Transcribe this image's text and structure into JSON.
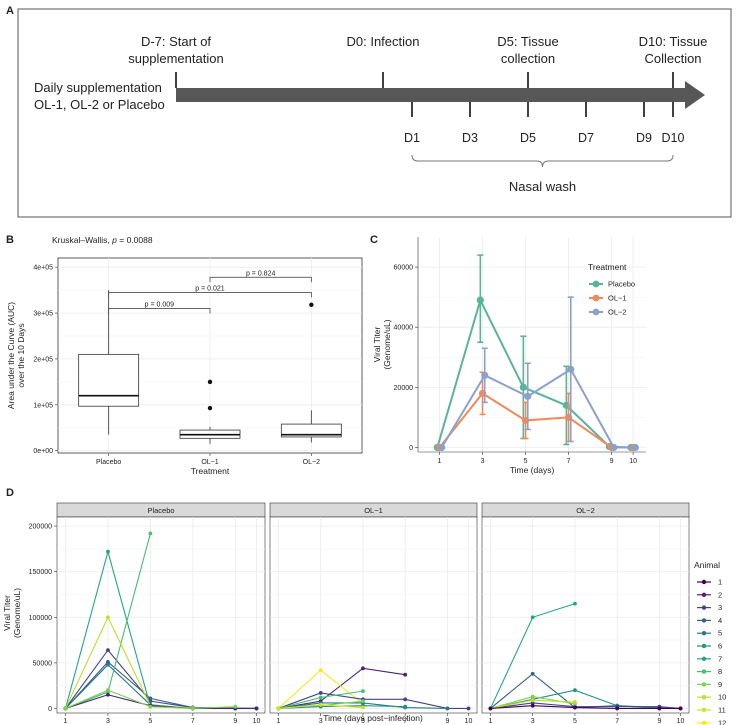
{
  "panel_letters": {
    "A": "A",
    "B": "B",
    "C": "C",
    "D": "D"
  },
  "timeline": {
    "left_label_lines": [
      "Daily supplementation",
      "OL-1, OL-2 or Placebo"
    ],
    "events": [
      {
        "day": -7,
        "lines": [
          "D-7: Start of",
          "supplementation"
        ]
      },
      {
        "day": 0,
        "lines": [
          "D0: Infection"
        ]
      },
      {
        "day": 5,
        "lines": [
          "D5: Tissue",
          "collection"
        ]
      },
      {
        "day": 10,
        "lines": [
          "D10: Tissue",
          "Collection"
        ]
      }
    ],
    "washes": [
      {
        "day": 1,
        "label": "D1"
      },
      {
        "day": 3,
        "label": "D3"
      },
      {
        "day": 5,
        "label": "D5"
      },
      {
        "day": 7,
        "label": "D7"
      },
      {
        "day": 9,
        "label": "D9"
      },
      {
        "day": 10,
        "label": "D10"
      }
    ],
    "bracket_label": "Nasal wash"
  },
  "colors": {
    "placebo": "#5ab497",
    "ol1": "#f08a5d",
    "ol2": "#8da0cb",
    "frame": "#555555"
  },
  "chart_data": [
    {
      "id": "B",
      "type": "box",
      "title": "Kruskal–Wallis, p = 0.0088",
      "title_prefix": "Kruskal–Wallis, ",
      "title_p": "p",
      "title_value": " = 0.0088",
      "xlabel": "Treatment",
      "ylabel_lines": [
        "Area under the Curve (AUC)",
        "over the 10 Days"
      ],
      "categories": [
        "Placebo",
        "OL−1",
        "OL−2"
      ],
      "ylim": [
        -5000,
        420000
      ],
      "yticks": [
        0,
        100000,
        200000,
        300000,
        400000
      ],
      "ytick_labels": [
        "0e+00",
        "1e+05",
        "2e+05",
        "3e+05",
        "4e+05"
      ],
      "boxes": [
        {
          "group": "Placebo",
          "whisker_low": 35000,
          "q1": 97000,
          "median": 120000,
          "q3": 210000,
          "whisker_high": 350000,
          "outliers": []
        },
        {
          "group": "OL−1",
          "whisker_low": 15000,
          "q1": 27000,
          "median": 35000,
          "q3": 45000,
          "whisker_high": 52000,
          "outliers": [
            93000,
            150000
          ]
        },
        {
          "group": "OL−2",
          "whisker_low": 18000,
          "q1": 30000,
          "median": 35000,
          "q3": 58000,
          "whisker_high": 88000,
          "outliers": [
            318000
          ]
        }
      ],
      "comparisons": [
        {
          "from": "OL−1",
          "to": "OL−2",
          "y": 378000,
          "label": "p = 0.824"
        },
        {
          "from": "Placebo",
          "to": "OL−2",
          "y": 345000,
          "label": "p = 0.021"
        },
        {
          "from": "Placebo",
          "to": "OL−1",
          "y": 310000,
          "label": "p = 0.009"
        }
      ]
    },
    {
      "id": "C",
      "type": "line",
      "xlabel": "Time (days)",
      "ylabel_lines": [
        "Viral Titer",
        "(Genome/uL)"
      ],
      "xticks": [
        1,
        3,
        5,
        7,
        9,
        10
      ],
      "xlim": [
        0,
        10.6
      ],
      "ylim": [
        -1500,
        70000
      ],
      "yticks": [
        0,
        20000,
        40000,
        60000
      ],
      "ytick_labels": [
        "0",
        "20000",
        "40000",
        "60000"
      ],
      "legend_title": "Treatment",
      "legend_position": "right",
      "series": [
        {
          "name": "Placebo",
          "color": "#5ab497",
          "x": [
            1,
            3,
            5,
            7,
            9,
            10
          ],
          "y": [
            0,
            49000,
            20000,
            14000,
            300,
            0
          ],
          "lo": [
            0,
            35000,
            3000,
            1000,
            0,
            0
          ],
          "hi": [
            0,
            64000,
            37000,
            27000,
            800,
            0
          ]
        },
        {
          "name": "OL−1",
          "color": "#f08a5d",
          "x": [
            1,
            3,
            5,
            7,
            9,
            10
          ],
          "y": [
            0,
            18000,
            9000,
            10000,
            0,
            0
          ],
          "lo": [
            0,
            11000,
            3000,
            2000,
            0,
            0
          ],
          "hi": [
            0,
            25000,
            15000,
            18000,
            0,
            0
          ]
        },
        {
          "name": "OL−2",
          "color": "#8da0cb",
          "x": [
            1,
            3,
            5,
            7,
            9,
            10
          ],
          "y": [
            0,
            24000,
            17000,
            26000,
            0,
            0
          ],
          "lo": [
            0,
            15000,
            6000,
            2000,
            0,
            0
          ],
          "hi": [
            0,
            33000,
            28000,
            50000,
            0,
            0
          ]
        }
      ]
    },
    {
      "id": "D",
      "type": "line",
      "xlabel": "Time (days post−infection)",
      "ylabel_lines": [
        "Viral Titer",
        "(Genome/uL)"
      ],
      "xticks": [
        1,
        3,
        5,
        7,
        9,
        10
      ],
      "xlim": [
        0.6,
        10.4
      ],
      "ylim": [
        -5000,
        210000
      ],
      "yticks": [
        0,
        50000,
        100000,
        150000,
        200000
      ],
      "ytick_labels": [
        "0",
        "50000",
        "100000",
        "150000",
        "200000"
      ],
      "legend_title": "Animal",
      "legend_position": "right",
      "animals": [
        {
          "id": "1",
          "color": "#440154"
        },
        {
          "id": "2",
          "color": "#482475"
        },
        {
          "id": "3",
          "color": "#414487"
        },
        {
          "id": "4",
          "color": "#355f8d"
        },
        {
          "id": "5",
          "color": "#2a788e"
        },
        {
          "id": "6",
          "color": "#21918c"
        },
        {
          "id": "7",
          "color": "#22a884"
        },
        {
          "id": "8",
          "color": "#44bf70"
        },
        {
          "id": "9",
          "color": "#7ad151"
        },
        {
          "id": "10",
          "color": "#bddf26"
        },
        {
          "id": "11",
          "color": "#d2e21b"
        },
        {
          "id": "12",
          "color": "#fde725"
        }
      ],
      "facets": [
        {
          "title": "Placebo",
          "series": [
            {
              "animal": "3",
              "x": [
                1,
                3,
                5,
                7,
                9,
                10
              ],
              "y": [
                0,
                64000,
                8000,
                1000,
                0,
                0
              ]
            },
            {
              "animal": "4",
              "x": [
                1,
                3,
                5,
                7,
                9,
                10
              ],
              "y": [
                0,
                51000,
                11000,
                1000,
                500,
                0
              ]
            },
            {
              "animal": "5",
              "x": [
                1,
                3,
                5,
                7,
                9,
                10
              ],
              "y": [
                0,
                48000,
                4000,
                0,
                0,
                0
              ]
            },
            {
              "animal": "7",
              "x": [
                1,
                3,
                5,
                7,
                9,
                10
              ],
              "y": [
                0,
                172000,
                2000,
                500,
                0,
                0
              ]
            },
            {
              "animal": "8",
              "x": [
                1,
                3,
                5
              ],
              "y": [
                0,
                18000,
                192000
              ]
            },
            {
              "animal": "10",
              "x": [
                1,
                3,
                5,
                7,
                9,
                10
              ],
              "y": [
                0,
                100000,
                3000,
                500,
                0,
                0
              ]
            },
            {
              "animal": "2",
              "x": [
                1,
                3,
                5,
                7,
                9,
                10
              ],
              "y": [
                0,
                15000,
                3000,
                0,
                0,
                0
              ]
            },
            {
              "animal": "9",
              "x": [
                1,
                3,
                5,
                7,
                9
              ],
              "y": [
                0,
                20000,
                2000,
                0,
                2000
              ]
            }
          ]
        },
        {
          "title": "OL−1",
          "series": [
            {
              "animal": "2",
              "x": [
                1,
                3,
                5,
                7
              ],
              "y": [
                0,
                8000,
                44000,
                37000
              ]
            },
            {
              "animal": "12",
              "x": [
                1,
                3,
                5
              ],
              "y": [
                0,
                42000,
                5000
              ]
            },
            {
              "animal": "3",
              "x": [
                1,
                3,
                5,
                7,
                9,
                10
              ],
              "y": [
                0,
                17000,
                10000,
                10000,
                0,
                0
              ]
            },
            {
              "animal": "8",
              "x": [
                1,
                3,
                5
              ],
              "y": [
                0,
                12000,
                19000
              ]
            },
            {
              "animal": "5",
              "x": [
                1,
                3,
                5,
                7,
                9
              ],
              "y": [
                0,
                6000,
                6000,
                1000,
                0
              ]
            },
            {
              "animal": "9",
              "x": [
                1,
                3,
                5
              ],
              "y": [
                0,
                3000,
                8000
              ]
            },
            {
              "animal": "6",
              "x": [
                1,
                3,
                5,
                7
              ],
              "y": [
                0,
                2000,
                3000,
                2000
              ]
            },
            {
              "animal": "11",
              "x": [
                1,
                3,
                5
              ],
              "y": [
                0,
                4000,
                1000
              ]
            }
          ]
        },
        {
          "title": "OL−2",
          "series": [
            {
              "animal": "7",
              "x": [
                1,
                3,
                5
              ],
              "y": [
                0,
                100000,
                115000
              ]
            },
            {
              "animal": "4",
              "x": [
                1,
                3,
                5,
                7,
                9,
                10
              ],
              "y": [
                0,
                38000,
                1000,
                3000,
                1000,
                0
              ]
            },
            {
              "animal": "6",
              "x": [
                1,
                3,
                5,
                7,
                9
              ],
              "y": [
                0,
                10000,
                20000,
                3000,
                0
              ]
            },
            {
              "animal": "3",
              "x": [
                1,
                3,
                5,
                7,
                9,
                10
              ],
              "y": [
                0,
                6000,
                2000,
                2000,
                2000,
                0
              ]
            },
            {
              "animal": "9",
              "x": [
                1,
                3,
                5
              ],
              "y": [
                0,
                13000,
                5000
              ]
            },
            {
              "animal": "10",
              "x": [
                1,
                3,
                5
              ],
              "y": [
                0,
                9000,
                7000
              ]
            },
            {
              "animal": "1",
              "x": [
                1,
                3,
                5,
                7,
                9,
                10
              ],
              "y": [
                0,
                3000,
                1000,
                0,
                0,
                0
              ]
            }
          ]
        }
      ]
    }
  ]
}
